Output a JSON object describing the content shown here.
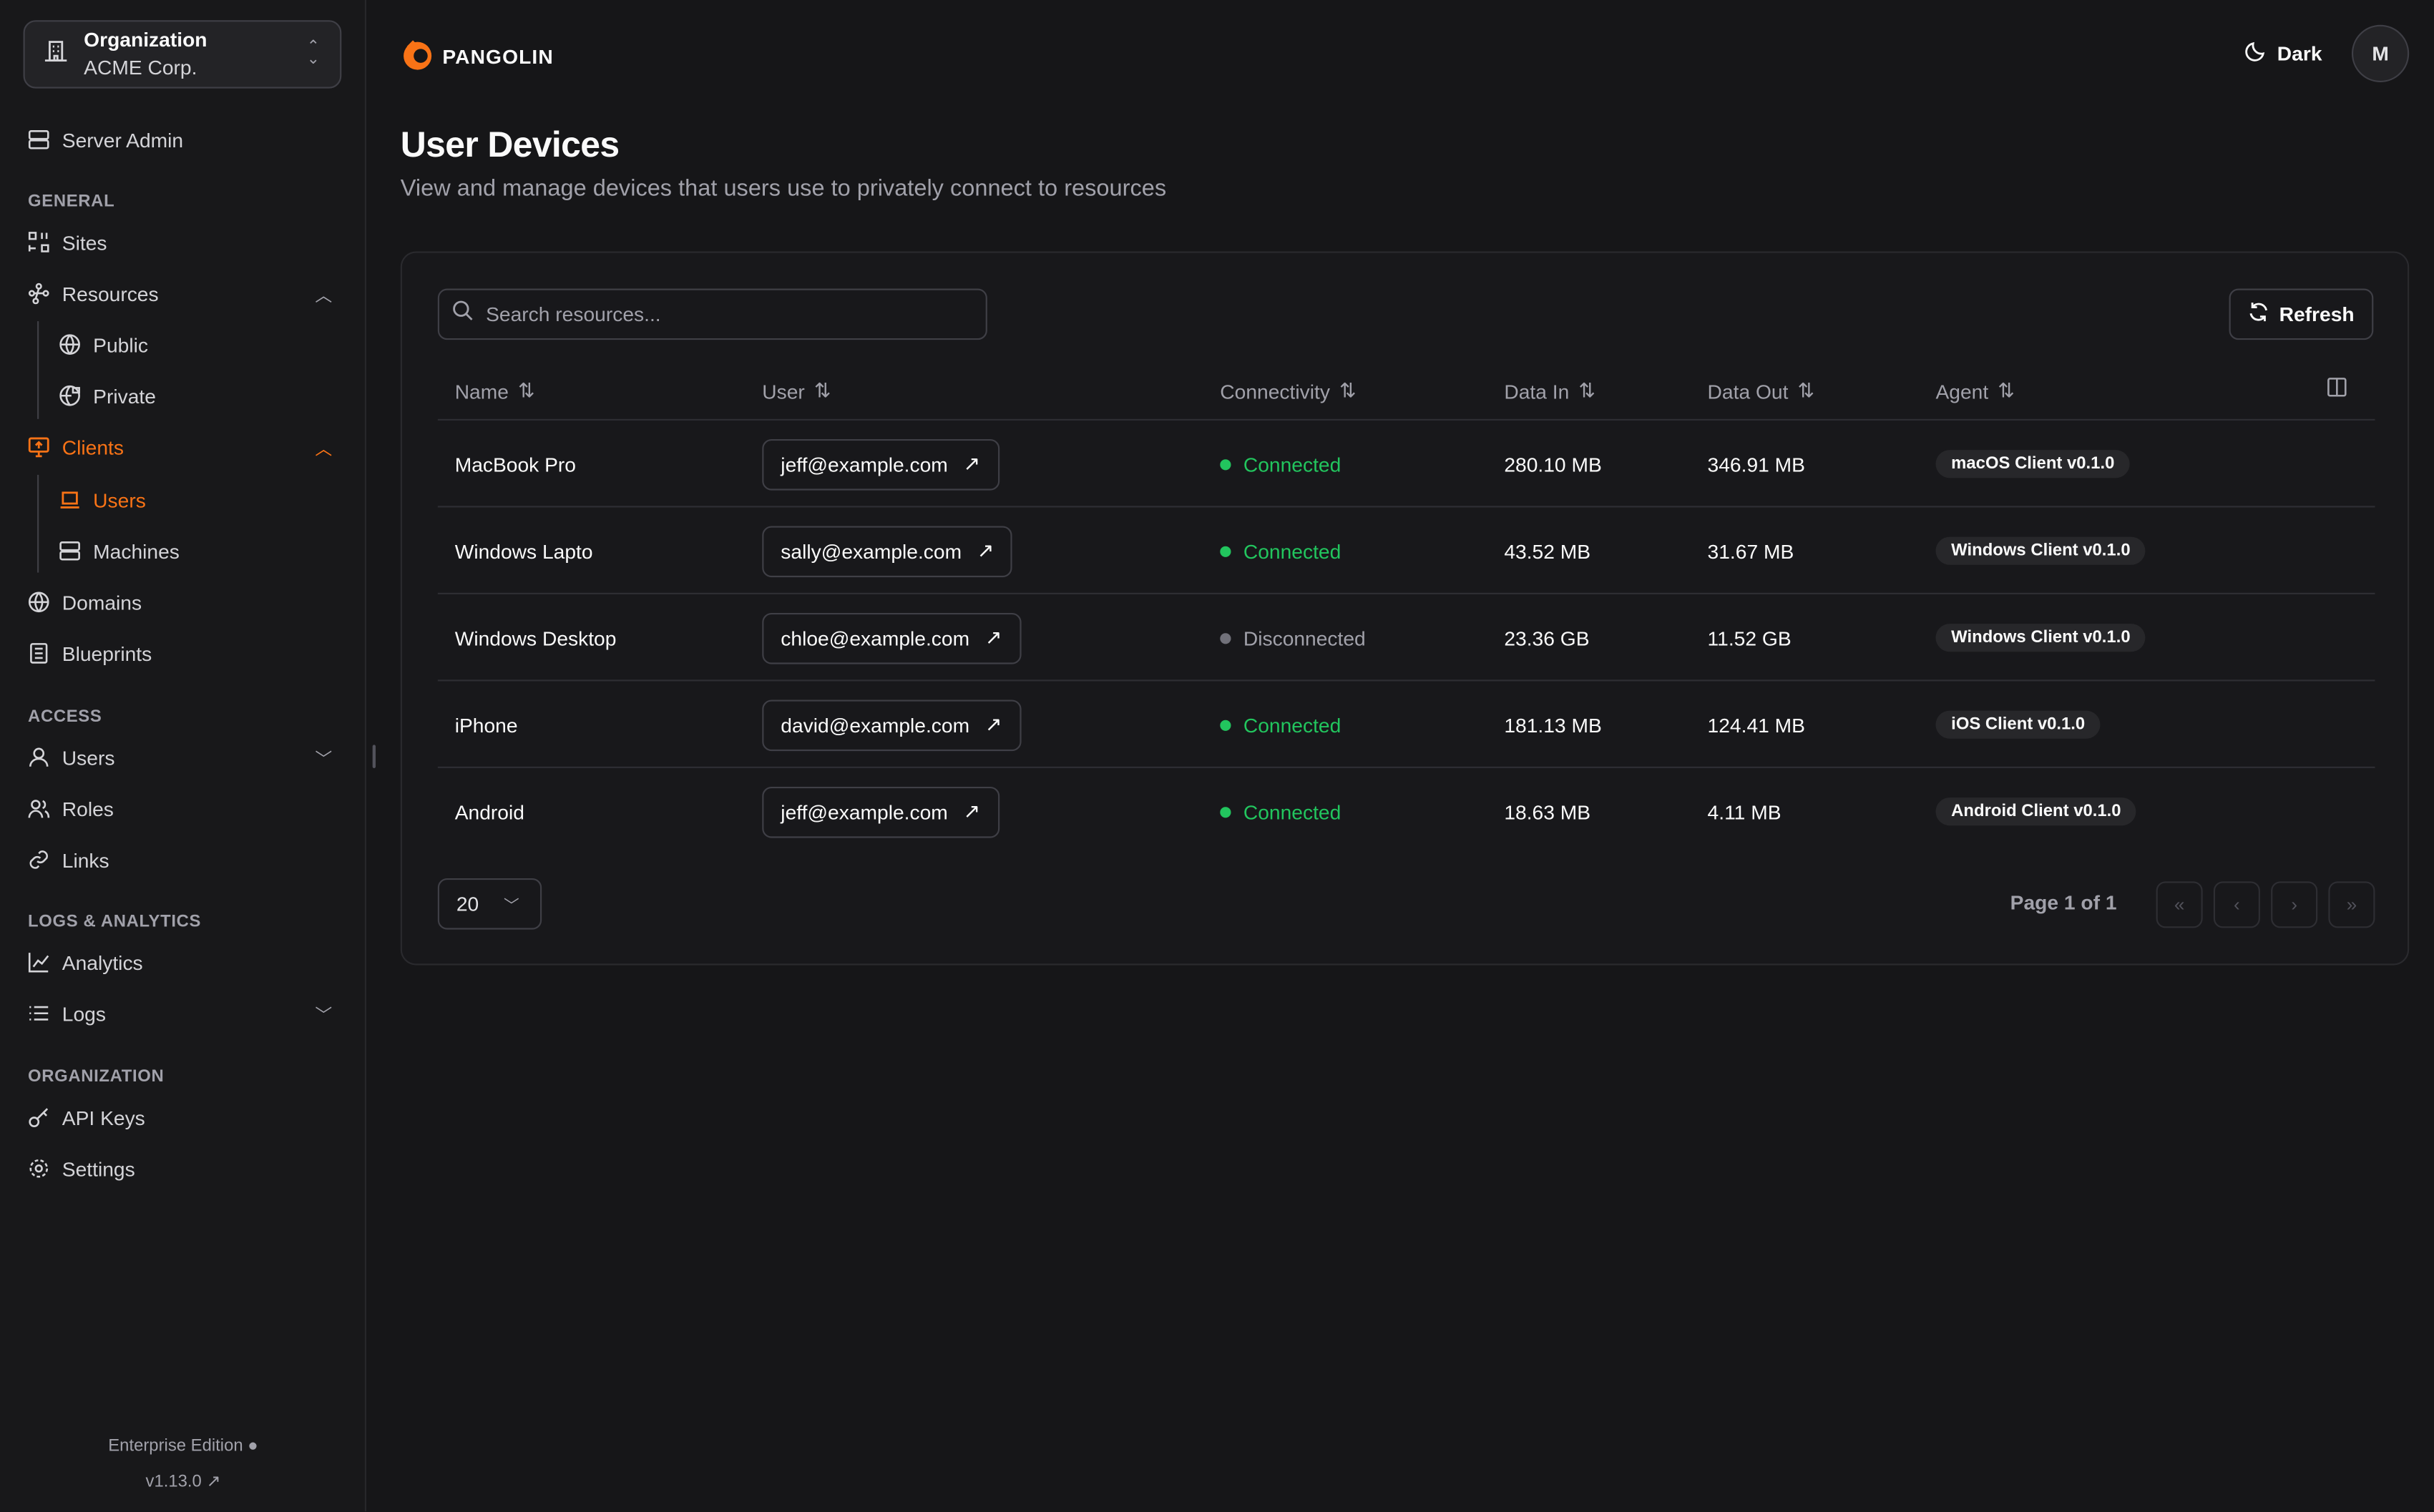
{
  "sidebar": {
    "org_label": "Organization",
    "org_name": "ACME Corp.",
    "server_admin": "Server Admin",
    "sections": {
      "general": "GENERAL",
      "access": "ACCESS",
      "logs": "LOGS & ANALYTICS",
      "organization": "ORGANIZATION"
    },
    "items": {
      "sites": "Sites",
      "resources": "Resources",
      "public": "Public",
      "private": "Private",
      "clients": "Clients",
      "users_sub": "Users",
      "machines": "Machines",
      "domains": "Domains",
      "blueprints": "Blueprints",
      "users": "Users",
      "roles": "Roles",
      "links": "Links",
      "analytics": "Analytics",
      "logs": "Logs",
      "api_keys": "API Keys",
      "settings": "Settings"
    },
    "edition": "Enterprise Edition",
    "version": "v1.13.0"
  },
  "header": {
    "brand": "PANGOLIN",
    "theme": "Dark",
    "avatar": "M"
  },
  "page": {
    "title": "User Devices",
    "description": "View and manage devices that users use to privately connect to resources"
  },
  "toolbar": {
    "search_placeholder": "Search resources...",
    "refresh": "Refresh"
  },
  "table": {
    "columns": [
      "Name",
      "User",
      "Connectivity",
      "Data In",
      "Data Out",
      "Agent"
    ],
    "rows": [
      {
        "name": "MacBook Pro",
        "user": "jeff@example.com",
        "status": "Connected",
        "data_in": "280.10 MB",
        "data_out": "346.91 MB",
        "agent": "macOS Client v0.1.0"
      },
      {
        "name": "Windows Lapto",
        "user": "sally@example.com",
        "status": "Connected",
        "data_in": "43.52 MB",
        "data_out": "31.67 MB",
        "agent": "Windows Client v0.1.0"
      },
      {
        "name": "Windows Desktop",
        "user": "chloe@example.com",
        "status": "Disconnected",
        "data_in": "23.36 GB",
        "data_out": "11.52 GB",
        "agent": "Windows Client v0.1.0"
      },
      {
        "name": "iPhone",
        "user": "david@example.com",
        "status": "Connected",
        "data_in": "181.13 MB",
        "data_out": "124.41 MB",
        "agent": "iOS Client v0.1.0"
      },
      {
        "name": "Android",
        "user": "jeff@example.com",
        "status": "Connected",
        "data_in": "18.63 MB",
        "data_out": "4.11 MB",
        "agent": "Android Client v0.1.0"
      }
    ]
  },
  "pagination": {
    "page_size": "20",
    "page_info": "Page 1 of 1"
  },
  "colors": {
    "accent": "#f97316",
    "connected": "#22c55e",
    "disconnected": "#71717a"
  }
}
